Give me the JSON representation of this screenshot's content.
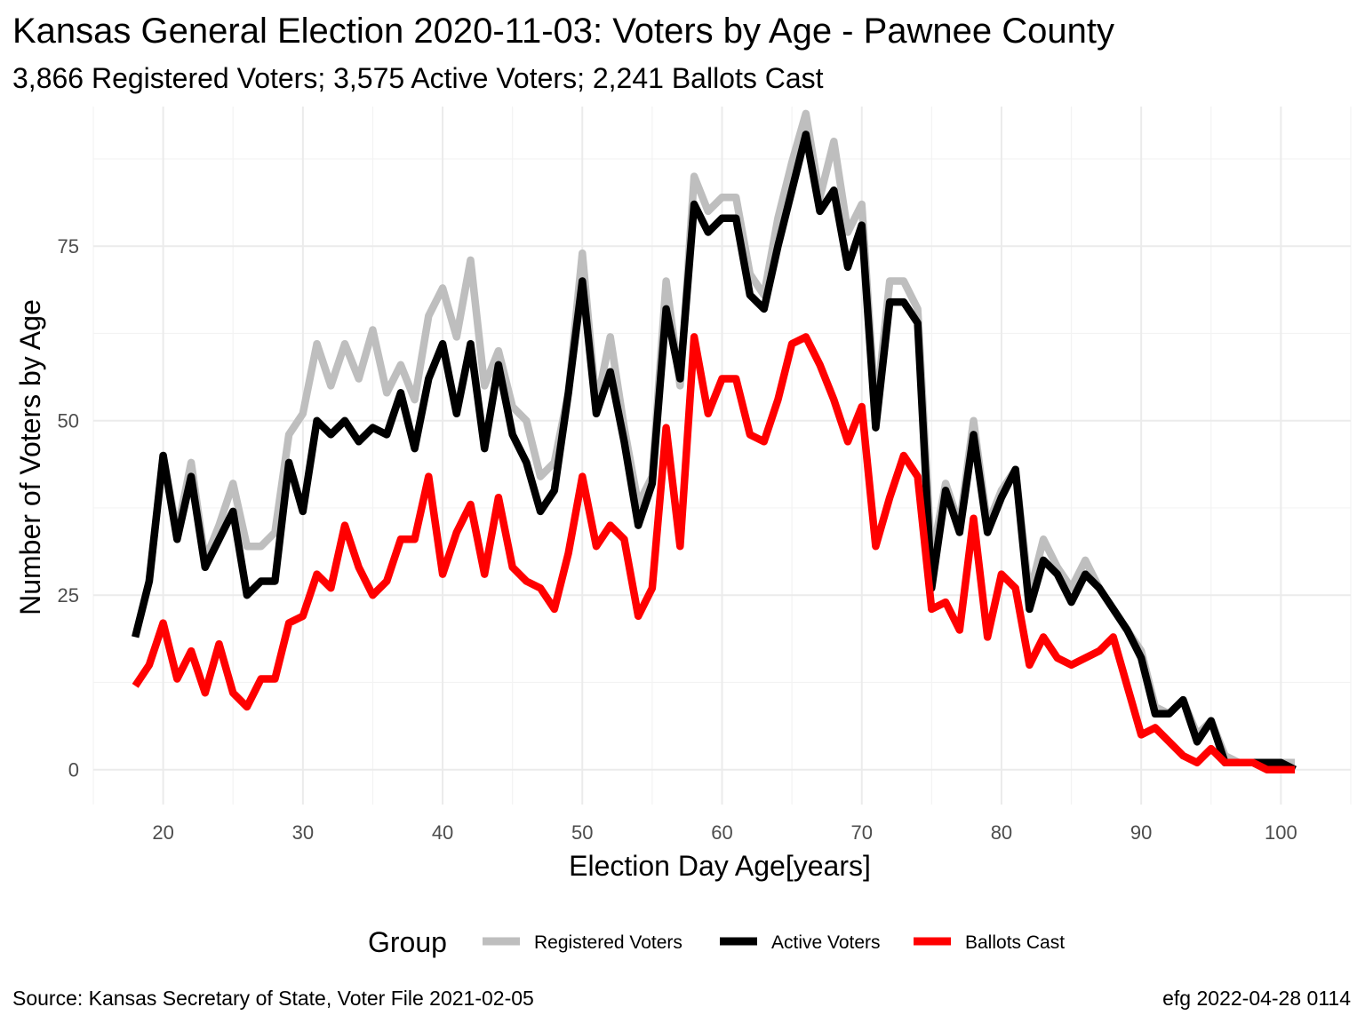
{
  "chart_data": {
    "type": "line",
    "title": "Kansas General Election 2020-11-03:  Voters by Age - Pawnee County",
    "subtitle": "3,866 Registered Voters; 3,575 Active Voters; 2,241 Ballots Cast",
    "xlabel": "Election Day Age[years]",
    "ylabel": "Number of Voters by Age",
    "xlim": [
      15,
      105
    ],
    "ylim": [
      -5,
      95
    ],
    "x_ticks": [
      20,
      30,
      40,
      50,
      60,
      70,
      80,
      90,
      100
    ],
    "y_ticks": [
      0,
      25,
      50,
      75
    ],
    "grid": true,
    "legend": {
      "title": "Group",
      "position": "bottom"
    },
    "x": [
      18,
      19,
      20,
      21,
      22,
      23,
      24,
      25,
      26,
      27,
      28,
      29,
      30,
      31,
      32,
      33,
      34,
      35,
      36,
      37,
      38,
      39,
      40,
      41,
      42,
      43,
      44,
      45,
      46,
      47,
      48,
      49,
      50,
      51,
      52,
      53,
      54,
      55,
      56,
      57,
      58,
      59,
      60,
      61,
      62,
      63,
      64,
      65,
      66,
      67,
      68,
      69,
      70,
      71,
      72,
      73,
      74,
      75,
      76,
      77,
      78,
      79,
      80,
      81,
      82,
      83,
      84,
      85,
      86,
      87,
      88,
      89,
      90,
      91,
      92,
      93,
      94,
      95,
      96,
      97,
      98,
      99,
      100,
      101
    ],
    "series": [
      {
        "name": "Registered Voters",
        "color": "#bebebe",
        "values": [
          19,
          27,
          45,
          34,
          44,
          30,
          35,
          41,
          32,
          32,
          34,
          48,
          51,
          61,
          55,
          61,
          56,
          63,
          54,
          58,
          53,
          65,
          69,
          62,
          73,
          55,
          60,
          52,
          50,
          42,
          44,
          54,
          74,
          52,
          62,
          49,
          38,
          42,
          70,
          55,
          85,
          80,
          82,
          82,
          71,
          68,
          79,
          87,
          94,
          82,
          90,
          77,
          81,
          51,
          70,
          70,
          66,
          30,
          41,
          35,
          50,
          35,
          40,
          43,
          25,
          33,
          29,
          26,
          30,
          26,
          23,
          20,
          17,
          9,
          8,
          10,
          5,
          7,
          2,
          1,
          1,
          1,
          1,
          1
        ]
      },
      {
        "name": "Active Voters",
        "color": "#000000",
        "values": [
          19,
          27,
          45,
          33,
          42,
          29,
          33,
          37,
          25,
          27,
          27,
          44,
          37,
          50,
          48,
          50,
          47,
          49,
          48,
          54,
          46,
          56,
          61,
          51,
          61,
          46,
          58,
          48,
          44,
          37,
          40,
          54,
          70,
          51,
          57,
          47,
          35,
          41,
          66,
          56,
          81,
          77,
          79,
          79,
          68,
          66,
          75,
          83,
          91,
          80,
          83,
          72,
          78,
          49,
          67,
          67,
          64,
          26,
          40,
          34,
          48,
          34,
          39,
          43,
          23,
          30,
          28,
          24,
          28,
          26,
          23,
          20,
          16,
          8,
          8,
          10,
          4,
          7,
          1,
          1,
          1,
          1,
          1,
          0
        ]
      },
      {
        "name": "Ballots Cast",
        "color": "#ff0000",
        "values": [
          12,
          15,
          21,
          13,
          17,
          11,
          18,
          11,
          9,
          13,
          13,
          21,
          22,
          28,
          26,
          35,
          29,
          25,
          27,
          33,
          33,
          42,
          28,
          34,
          38,
          28,
          39,
          29,
          27,
          26,
          23,
          31,
          42,
          32,
          35,
          33,
          22,
          26,
          49,
          32,
          62,
          51,
          56,
          56,
          48,
          47,
          53,
          61,
          62,
          58,
          53,
          47,
          52,
          32,
          39,
          45,
          42,
          23,
          24,
          20,
          36,
          19,
          28,
          26,
          15,
          19,
          16,
          15,
          16,
          17,
          19,
          12,
          5,
          6,
          4,
          2,
          1,
          3,
          1,
          1,
          1,
          0,
          0,
          0
        ]
      }
    ]
  },
  "caption": {
    "source": "Source:  Kansas Secretary of State, Voter File  2021-02-05",
    "credit": "efg 2022-04-28 0114"
  }
}
